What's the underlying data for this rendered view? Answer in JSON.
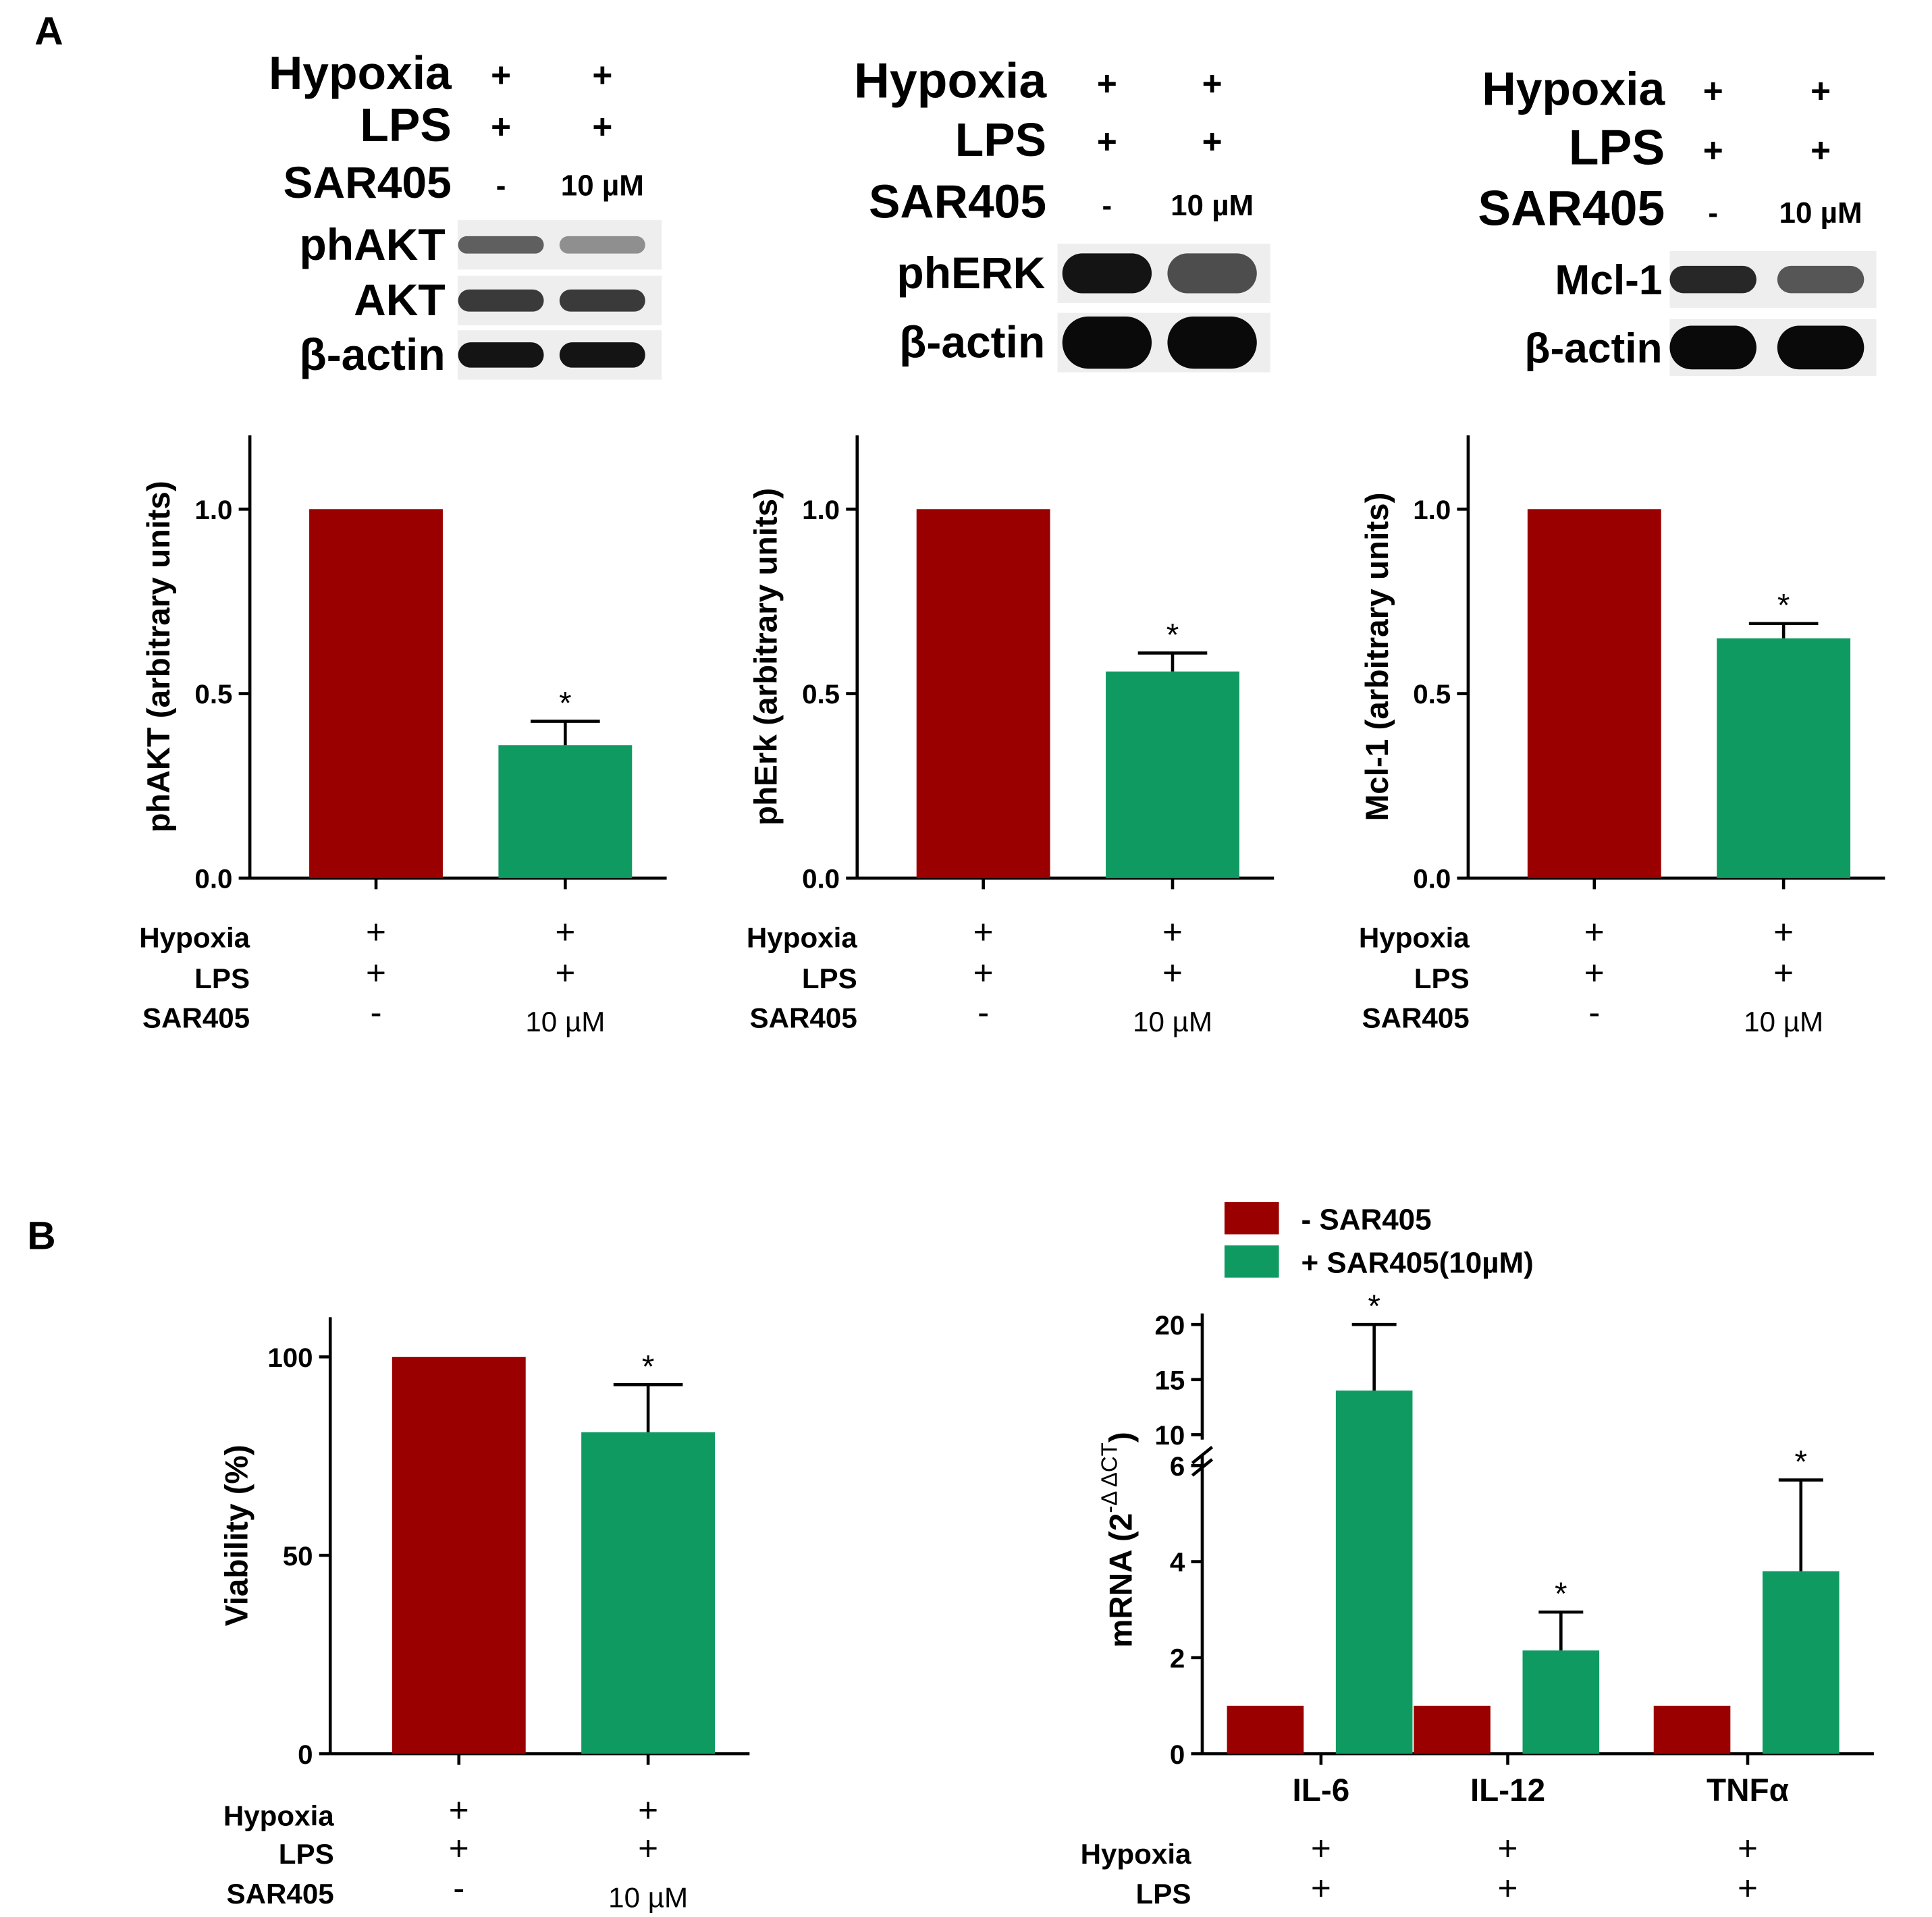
{
  "panel_labels": {
    "a": "A",
    "b": "B"
  },
  "colors": {
    "control": "#9b0000",
    "treated": "#0f9a62",
    "ink": "#000000"
  },
  "blots": [
    {
      "conditions": [
        {
          "label": "Hypoxia",
          "values": [
            "+",
            "+"
          ]
        },
        {
          "label": "LPS",
          "values": [
            "+",
            "+"
          ]
        },
        {
          "label": "SAR405",
          "values": [
            "-",
            "10 µM"
          ]
        }
      ],
      "rows": [
        {
          "label": "phAKT",
          "intensity": [
            0.55,
            0.3
          ],
          "band_height": 0.22
        },
        {
          "label": "AKT",
          "intensity": [
            0.75,
            0.75
          ],
          "band_height": 0.28
        },
        {
          "label": "β-actin",
          "intensity": [
            0.95,
            0.95
          ],
          "band_height": 0.32
        }
      ]
    },
    {
      "conditions": [
        {
          "label": "Hypoxia",
          "values": [
            "+",
            "+"
          ]
        },
        {
          "label": "LPS",
          "values": [
            "+",
            "+"
          ]
        },
        {
          "label": "SAR405",
          "values": [
            "-",
            "10 µM"
          ]
        }
      ],
      "rows": [
        {
          "label": "phERK",
          "intensity": [
            0.95,
            0.65
          ],
          "band_height": 0.42
        },
        {
          "label": "β-actin",
          "intensity": [
            1.0,
            1.0
          ],
          "band_height": 0.55
        }
      ]
    },
    {
      "conditions": [
        {
          "label": "Hypoxia",
          "values": [
            "+",
            "+"
          ]
        },
        {
          "label": "LPS",
          "values": [
            "+",
            "+"
          ]
        },
        {
          "label": "SAR405",
          "values": [
            "-",
            "10 µM"
          ]
        }
      ],
      "rows": [
        {
          "label": "Mcl-1",
          "intensity": [
            0.85,
            0.6
          ],
          "band_height": 0.3
        },
        {
          "label": "β-actin",
          "intensity": [
            1.0,
            1.0
          ],
          "band_height": 0.48
        }
      ]
    }
  ],
  "chart_data": [
    {
      "type": "bar",
      "ylabel": "phAKT (arbitrary units)",
      "ylim": [
        0,
        1.2
      ],
      "yticks": [
        0.0,
        0.5,
        1.0
      ],
      "ytick_labels": [
        "0.0",
        "0.5",
        "1.0"
      ],
      "values": [
        1.0,
        0.36
      ],
      "errors": [
        0,
        0.065
      ],
      "significance": [
        "",
        "*"
      ],
      "conditions": [
        {
          "label": "Hypoxia",
          "values": [
            "+",
            "+"
          ]
        },
        {
          "label": "LPS",
          "values": [
            "+",
            "+"
          ]
        },
        {
          "label": "SAR405",
          "values": [
            "-",
            "10 µM"
          ]
        }
      ]
    },
    {
      "type": "bar",
      "ylabel": "phErk (arbitrary units)",
      "ylim": [
        0,
        1.2
      ],
      "yticks": [
        0.0,
        0.5,
        1.0
      ],
      "ytick_labels": [
        "0.0",
        "0.5",
        "1.0"
      ],
      "values": [
        1.0,
        0.56
      ],
      "errors": [
        0,
        0.05
      ],
      "significance": [
        "",
        "*"
      ],
      "conditions": [
        {
          "label": "Hypoxia",
          "values": [
            "+",
            "+"
          ]
        },
        {
          "label": "LPS",
          "values": [
            "+",
            "+"
          ]
        },
        {
          "label": "SAR405",
          "values": [
            "-",
            "10 µM"
          ]
        }
      ]
    },
    {
      "type": "bar",
      "ylabel": "Mcl-1 (arbitrary units)",
      "ylim": [
        0,
        1.2
      ],
      "yticks": [
        0.0,
        0.5,
        1.0
      ],
      "ytick_labels": [
        "0.0",
        "0.5",
        "1.0"
      ],
      "values": [
        1.0,
        0.65
      ],
      "errors": [
        0,
        0.04
      ],
      "significance": [
        "",
        "*"
      ],
      "conditions": [
        {
          "label": "Hypoxia",
          "values": [
            "+",
            "+"
          ]
        },
        {
          "label": "LPS",
          "values": [
            "+",
            "+"
          ]
        },
        {
          "label": "SAR405",
          "values": [
            "-",
            "10 µM"
          ]
        }
      ]
    },
    {
      "type": "bar",
      "ylabel": "Viability (%)",
      "ylim": [
        0,
        110
      ],
      "yticks": [
        0,
        50,
        100
      ],
      "ytick_labels": [
        "0",
        "50",
        "100"
      ],
      "values": [
        100,
        81
      ],
      "errors": [
        0,
        12
      ],
      "significance": [
        "",
        "*"
      ],
      "conditions": [
        {
          "label": "Hypoxia",
          "values": [
            "+",
            "+"
          ]
        },
        {
          "label": "LPS",
          "values": [
            "+",
            "+"
          ]
        },
        {
          "label": "SAR405",
          "values": [
            "-",
            "10 µM"
          ]
        }
      ]
    },
    {
      "type": "bar",
      "ylabel_main": "mRNA (2",
      "ylabel_sup": "-Δ ΔCT",
      "ylabel_end": ")",
      "categories": [
        "IL-6",
        "IL-12",
        "TNFα"
      ],
      "axis_break": {
        "lower": [
          0,
          6
        ],
        "upper": [
          10,
          21
        ]
      },
      "lower_ticks": [
        0,
        2,
        4,
        6
      ],
      "lower_tick_labels": [
        "0",
        "2",
        "4",
        "6"
      ],
      "upper_ticks": [
        10,
        15,
        20
      ],
      "upper_tick_labels": [
        "10",
        "15",
        "20"
      ],
      "legend": [
        "- SAR405",
        "+ SAR405(10µM)"
      ],
      "legend_position": "top",
      "series": [
        {
          "name": "- SAR405",
          "values": [
            1.0,
            1.0,
            1.0
          ],
          "errors": [
            0,
            0,
            0
          ],
          "significance": [
            "",
            "",
            ""
          ]
        },
        {
          "name": "+ SAR405(10µM)",
          "values": [
            14,
            2.15,
            3.8
          ],
          "errors": [
            6,
            0.8,
            1.9
          ],
          "significance": [
            "*",
            "*",
            "*"
          ]
        }
      ],
      "conditions": [
        {
          "label": "Hypoxia",
          "values": [
            "+",
            "+",
            "+"
          ]
        },
        {
          "label": "LPS",
          "values": [
            "+",
            "+",
            "+"
          ]
        }
      ]
    }
  ]
}
